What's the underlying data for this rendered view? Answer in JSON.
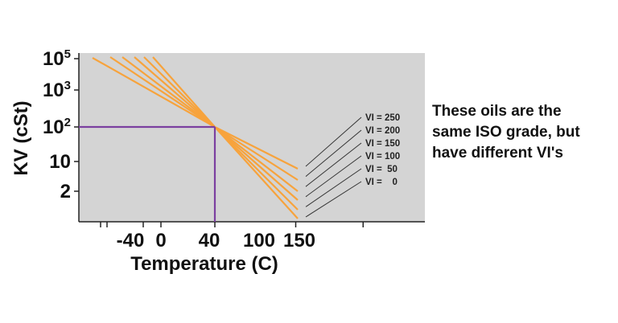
{
  "chart_data": {
    "type": "line",
    "title": "",
    "xlabel": "Temperature (C)",
    "ylabel": "KV (cSt)",
    "x_ticks": [
      {
        "value": -40,
        "label": "-40"
      },
      {
        "value": 0,
        "label": "0"
      },
      {
        "value": 40,
        "label": "40"
      },
      {
        "value": 100,
        "label": "100"
      },
      {
        "value": 150,
        "label": "150"
      }
    ],
    "y_ticks": [
      {
        "label": "10",
        "sup": "5"
      },
      {
        "label": "10",
        "sup": "3"
      },
      {
        "label": "10",
        "sup": "2"
      },
      {
        "label": "10",
        "sup": ""
      },
      {
        "label": "2",
        "sup": ""
      }
    ],
    "reference_point": {
      "x": 40,
      "y": "10^2"
    },
    "series": [
      {
        "name": "VI = 250"
      },
      {
        "name": "VI = 200"
      },
      {
        "name": "VI = 150"
      },
      {
        "name": "VI = 100"
      },
      {
        "name": "VI =  50"
      },
      {
        "name": "VI =    0"
      }
    ],
    "annotation": [
      "These oils are the",
      "same ISO grade, but",
      "have different VI's"
    ],
    "colors": {
      "plot_bg": "#d4d4d4",
      "lines": "#f7a33c",
      "reference": "#7b3fa0",
      "leader": "#333333"
    }
  }
}
